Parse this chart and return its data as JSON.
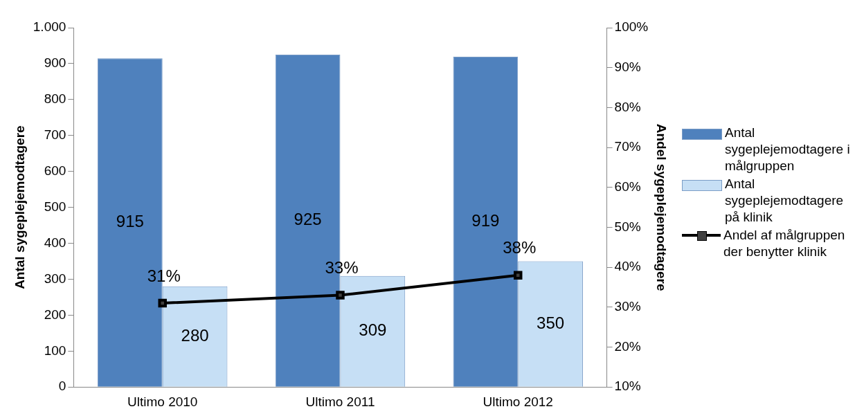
{
  "chart_data": {
    "type": "bar",
    "categories": [
      "Ultimo 2010",
      "Ultimo 2011",
      "Ultimo 2012"
    ],
    "series": [
      {
        "name": "Antal sygeplejemodtagere i målgruppen",
        "color": "#4f81bd",
        "values": [
          915,
          925,
          919
        ],
        "value_labels": [
          "915",
          "925",
          "919"
        ]
      },
      {
        "name": "Antal sygeplejemodtagere på klinik",
        "color": "#c6dff5",
        "values": [
          280,
          309,
          350
        ],
        "value_labels": [
          "280",
          "309",
          "350"
        ]
      },
      {
        "name": "Andel af målgruppen der benytter klinik",
        "type": "line",
        "axis": "y2",
        "color": "#000000",
        "values": [
          31,
          33,
          38
        ],
        "value_labels": [
          "31%",
          "33%",
          "38%"
        ]
      }
    ],
    "ylabel": "Antal sygeplejemodtagere",
    "y2label": "Andel sygeplejemodtagere",
    "ylim": [
      0,
      1000
    ],
    "yticks": [
      0,
      100,
      200,
      300,
      400,
      500,
      600,
      700,
      800,
      900,
      {
        "value": 1000,
        "label": "1.000"
      }
    ],
    "y2lim": [
      10,
      100
    ],
    "y2ticks": [
      {
        "value": 10,
        "label": "10%"
      },
      {
        "value": 20,
        "label": "20%"
      },
      {
        "value": 30,
        "label": "30%"
      },
      {
        "value": 40,
        "label": "40%"
      },
      {
        "value": 50,
        "label": "50%"
      },
      {
        "value": 60,
        "label": "60%"
      },
      {
        "value": 70,
        "label": "70%"
      },
      {
        "value": 80,
        "label": "80%"
      },
      {
        "value": 90,
        "label": "90%"
      },
      {
        "value": 100,
        "label": "100%"
      }
    ],
    "grid": false,
    "legend": "right",
    "marker": "square",
    "line_style": "solid"
  }
}
